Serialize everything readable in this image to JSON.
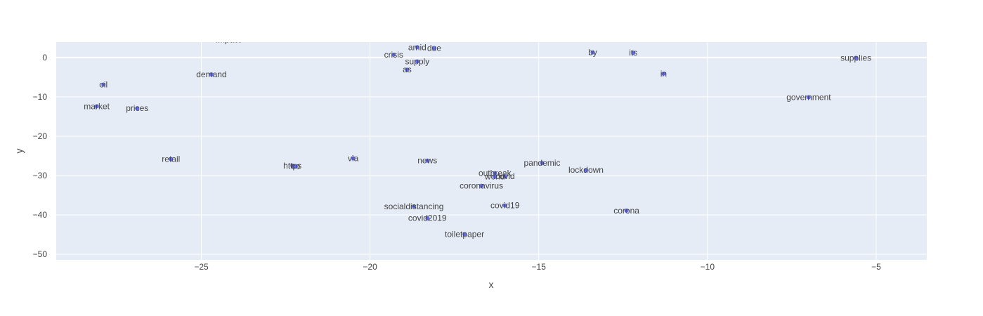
{
  "chart_data": {
    "type": "scatter",
    "xlabel": "x",
    "ylabel": "y",
    "xlim": [
      -29.3,
      -3.5
    ],
    "ylim": [
      -51.4,
      3.9
    ],
    "x_ticks": [
      -25,
      -20,
      -15,
      -10,
      -5
    ],
    "y_ticks": [
      -50,
      -40,
      -30,
      -20,
      -10,
      0
    ],
    "x_tick_labels": [
      "−25",
      "−20",
      "−15",
      "−10",
      "−5"
    ],
    "y_tick_labels": [
      "−50",
      "−40",
      "−30",
      "−20",
      "−10",
      "0"
    ],
    "grid": true,
    "colors": {
      "plot_bg": "#e5ecf6",
      "grid": "#ffffff",
      "marker": "#636efa",
      "text": "#444444"
    },
    "points": [
      {
        "label": "impact",
        "x": -24.2,
        "y": 4.5
      },
      {
        "label": "amid",
        "x": -18.6,
        "y": 2.6
      },
      {
        "label": "due",
        "x": -18.1,
        "y": 2.4
      },
      {
        "label": "crisis",
        "x": -19.3,
        "y": 0.7
      },
      {
        "label": "supply",
        "x": -18.6,
        "y": -1.0
      },
      {
        "label": "as",
        "x": -18.9,
        "y": -3.1
      },
      {
        "label": "by",
        "x": -13.4,
        "y": 1.3
      },
      {
        "label": "its",
        "x": -12.2,
        "y": 1.2
      },
      {
        "label": "supplies",
        "x": -5.6,
        "y": -0.1
      },
      {
        "label": "in",
        "x": -11.3,
        "y": -4.1
      },
      {
        "label": "demand",
        "x": -24.7,
        "y": -4.3
      },
      {
        "label": "oil",
        "x": -27.9,
        "y": -6.9
      },
      {
        "label": "market",
        "x": -28.1,
        "y": -12.4
      },
      {
        "label": "prices",
        "x": -26.9,
        "y": -12.9
      },
      {
        "label": "government",
        "x": -7.0,
        "y": -10.1
      },
      {
        "label": "retail",
        "x": -25.9,
        "y": -25.8
      },
      {
        "label": "via",
        "x": -20.5,
        "y": -25.6
      },
      {
        "label": "https",
        "x": -22.3,
        "y": -27.5
      },
      {
        "label": "co",
        "x": -22.2,
        "y": -27.6
      },
      {
        "label": "news",
        "x": -18.3,
        "y": -26.2
      },
      {
        "label": "pandemic",
        "x": -14.9,
        "y": -26.8
      },
      {
        "label": "lockdown",
        "x": -13.6,
        "y": -28.6
      },
      {
        "label": "outbreak",
        "x": -16.3,
        "y": -29.4
      },
      {
        "label": "covid",
        "x": -16.0,
        "y": -30.2
      },
      {
        "label": "world",
        "x": -16.3,
        "y": -30.3
      },
      {
        "label": "coronavirus",
        "x": -16.7,
        "y": -32.6
      },
      {
        "label": "covid19",
        "x": -16.0,
        "y": -37.6
      },
      {
        "label": "socialdistancing",
        "x": -18.7,
        "y": -37.8
      },
      {
        "label": "corona",
        "x": -12.4,
        "y": -38.9
      },
      {
        "label": "covid2019",
        "x": -18.3,
        "y": -40.8
      },
      {
        "label": "toiletpaper",
        "x": -17.2,
        "y": -44.9
      }
    ]
  }
}
